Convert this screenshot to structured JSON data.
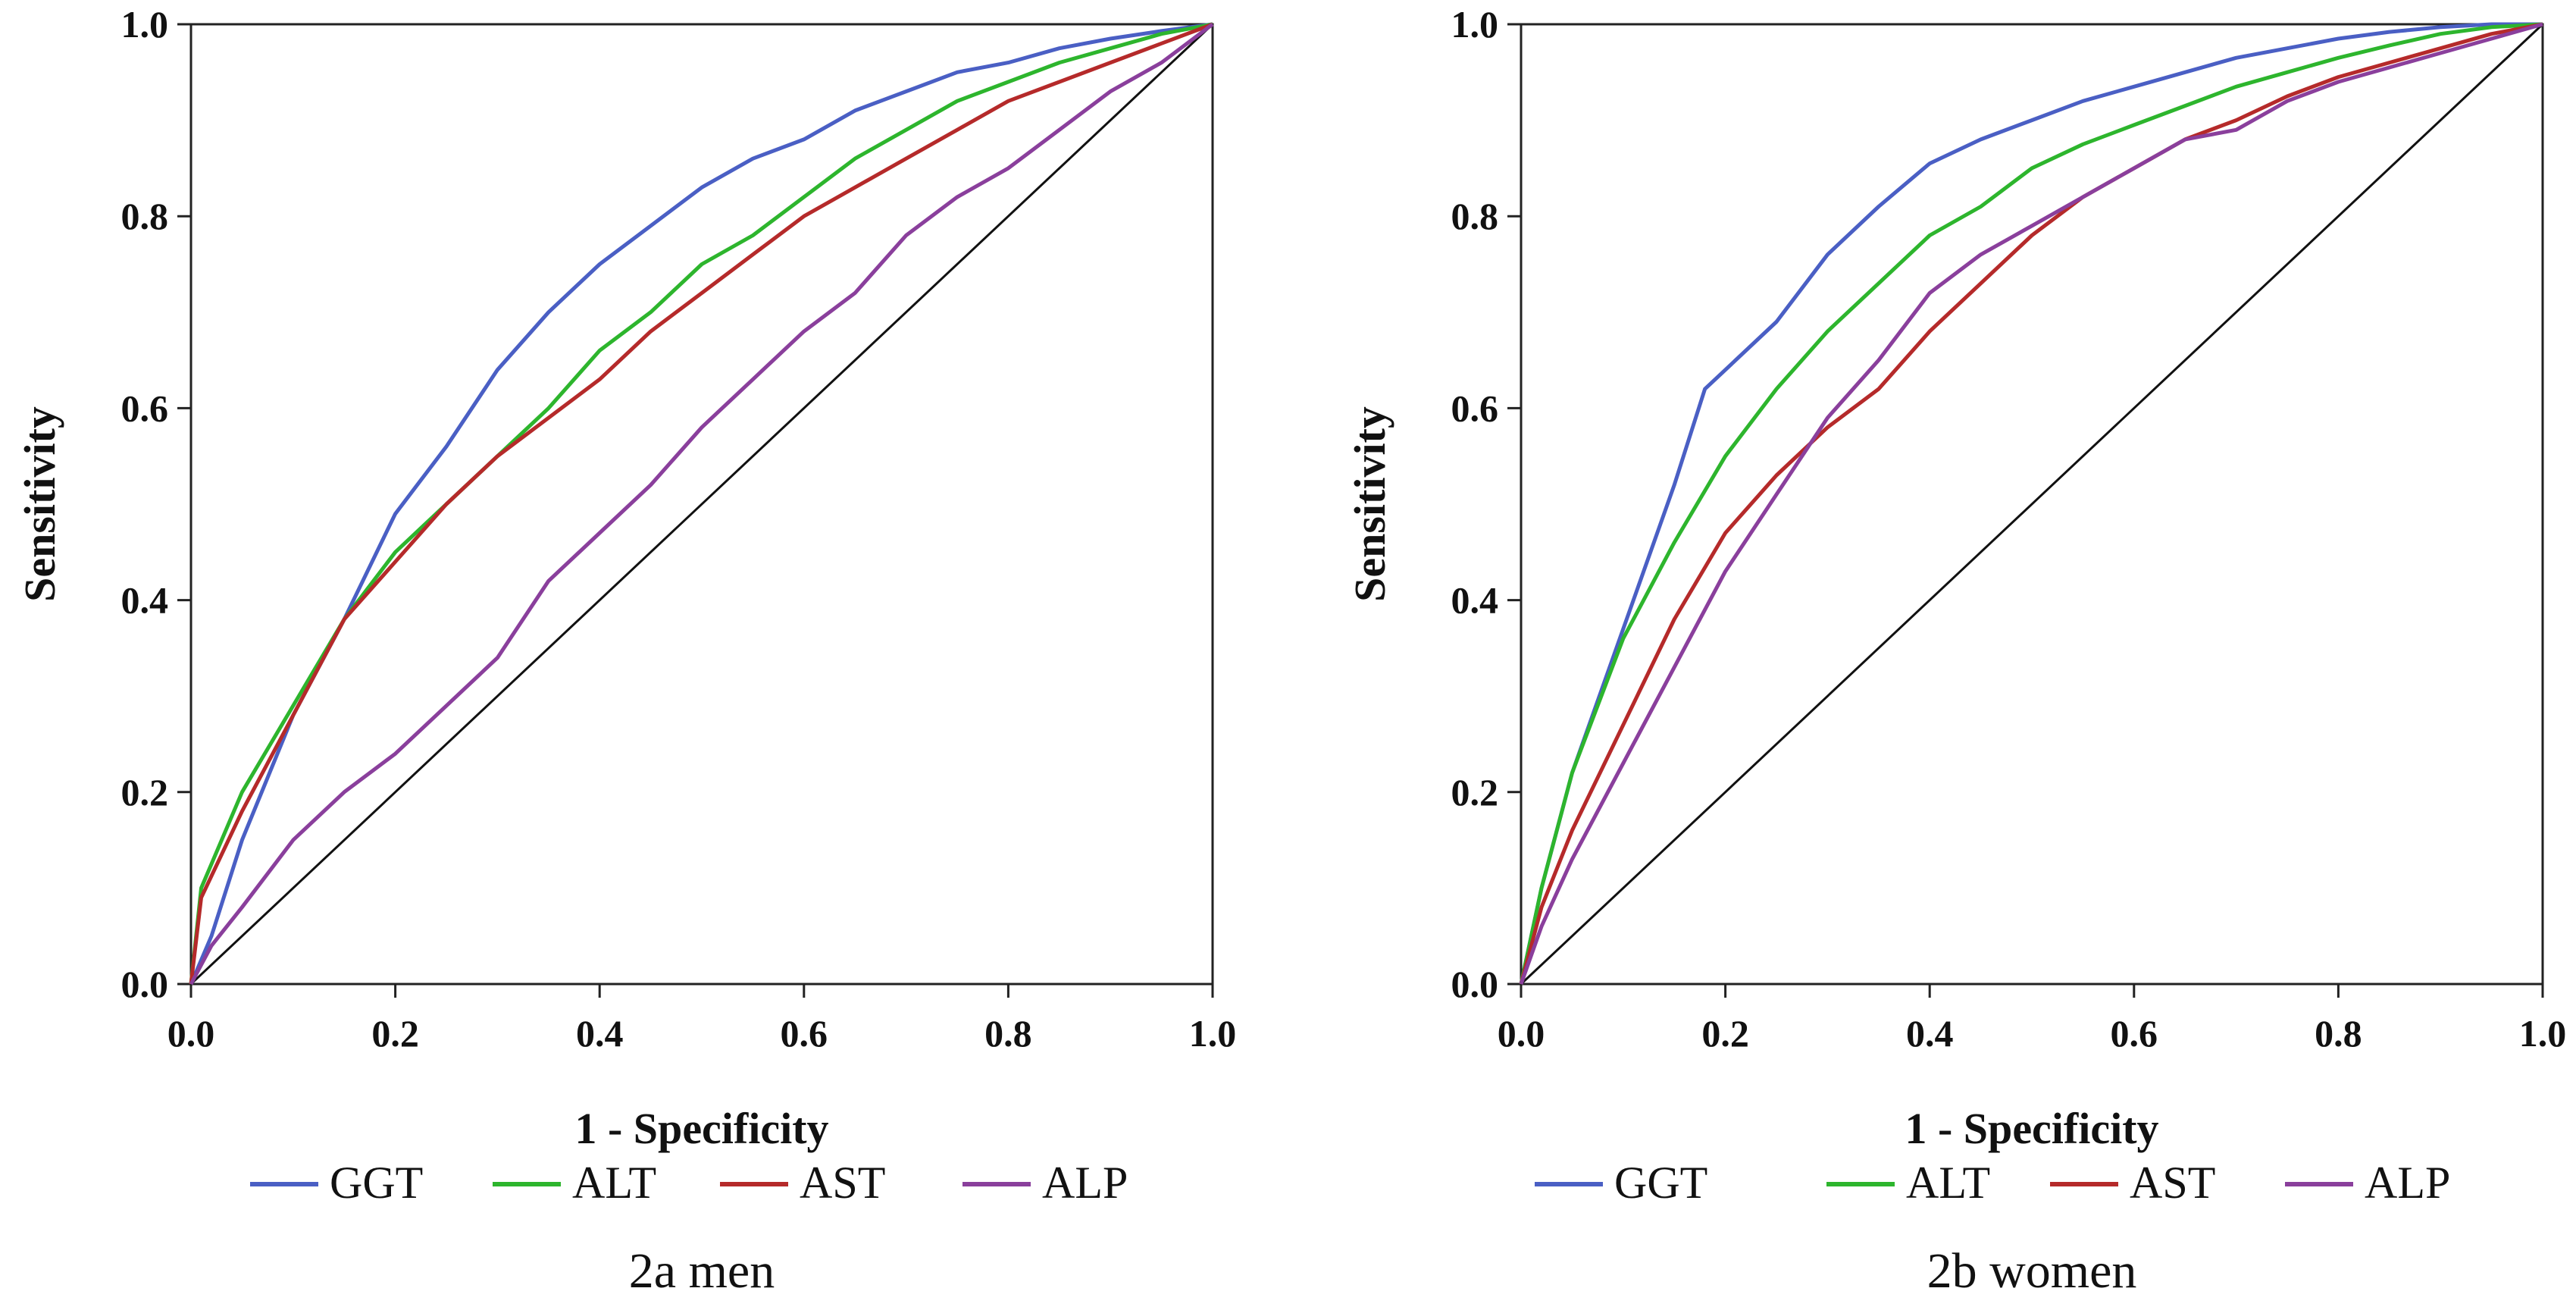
{
  "chart_data": [
    {
      "type": "line",
      "caption": "2a  men",
      "xlabel": "1 - Specificity",
      "ylabel": "Sensitivity",
      "xlim": [
        0,
        1
      ],
      "ylim": [
        0,
        1
      ],
      "xticks": [
        "0.0",
        "0.2",
        "0.4",
        "0.6",
        "0.8",
        "1.0"
      ],
      "yticks": [
        "0.0",
        "0.2",
        "0.4",
        "0.6",
        "0.8",
        "1.0"
      ],
      "grid": false,
      "legend": "bottom",
      "reference_line": [
        [
          0,
          0
        ],
        [
          1,
          1
        ]
      ],
      "series": [
        {
          "name": "GGT",
          "color": "#4a5fc4",
          "points": [
            [
              0,
              0
            ],
            [
              0.02,
              0.05
            ],
            [
              0.05,
              0.15
            ],
            [
              0.1,
              0.28
            ],
            [
              0.15,
              0.38
            ],
            [
              0.2,
              0.49
            ],
            [
              0.25,
              0.56
            ],
            [
              0.3,
              0.64
            ],
            [
              0.35,
              0.7
            ],
            [
              0.4,
              0.75
            ],
            [
              0.45,
              0.79
            ],
            [
              0.5,
              0.83
            ],
            [
              0.55,
              0.86
            ],
            [
              0.6,
              0.88
            ],
            [
              0.65,
              0.91
            ],
            [
              0.7,
              0.93
            ],
            [
              0.75,
              0.95
            ],
            [
              0.8,
              0.96
            ],
            [
              0.85,
              0.975
            ],
            [
              0.9,
              0.985
            ],
            [
              0.95,
              0.993
            ],
            [
              1,
              1
            ]
          ]
        },
        {
          "name": "ALT",
          "color": "#2db52d",
          "points": [
            [
              0,
              0
            ],
            [
              0.01,
              0.1
            ],
            [
              0.05,
              0.2
            ],
            [
              0.1,
              0.29
            ],
            [
              0.15,
              0.38
            ],
            [
              0.2,
              0.45
            ],
            [
              0.25,
              0.5
            ],
            [
              0.3,
              0.55
            ],
            [
              0.35,
              0.6
            ],
            [
              0.4,
              0.66
            ],
            [
              0.45,
              0.7
            ],
            [
              0.5,
              0.75
            ],
            [
              0.55,
              0.78
            ],
            [
              0.6,
              0.82
            ],
            [
              0.65,
              0.86
            ],
            [
              0.7,
              0.89
            ],
            [
              0.75,
              0.92
            ],
            [
              0.8,
              0.94
            ],
            [
              0.85,
              0.96
            ],
            [
              0.9,
              0.975
            ],
            [
              0.95,
              0.99
            ],
            [
              1,
              1
            ]
          ]
        },
        {
          "name": "AST",
          "color": "#b52a2a",
          "points": [
            [
              0,
              0
            ],
            [
              0.01,
              0.09
            ],
            [
              0.05,
              0.18
            ],
            [
              0.1,
              0.28
            ],
            [
              0.15,
              0.38
            ],
            [
              0.2,
              0.44
            ],
            [
              0.25,
              0.5
            ],
            [
              0.3,
              0.55
            ],
            [
              0.35,
              0.59
            ],
            [
              0.4,
              0.63
            ],
            [
              0.45,
              0.68
            ],
            [
              0.5,
              0.72
            ],
            [
              0.55,
              0.76
            ],
            [
              0.6,
              0.8
            ],
            [
              0.65,
              0.83
            ],
            [
              0.7,
              0.86
            ],
            [
              0.75,
              0.89
            ],
            [
              0.8,
              0.92
            ],
            [
              0.85,
              0.94
            ],
            [
              0.9,
              0.96
            ],
            [
              0.95,
              0.98
            ],
            [
              1,
              1
            ]
          ]
        },
        {
          "name": "ALP",
          "color": "#8a3f9c",
          "points": [
            [
              0,
              0
            ],
            [
              0.02,
              0.04
            ],
            [
              0.05,
              0.08
            ],
            [
              0.1,
              0.15
            ],
            [
              0.15,
              0.2
            ],
            [
              0.2,
              0.24
            ],
            [
              0.25,
              0.29
            ],
            [
              0.3,
              0.34
            ],
            [
              0.35,
              0.42
            ],
            [
              0.4,
              0.47
            ],
            [
              0.45,
              0.52
            ],
            [
              0.5,
              0.58
            ],
            [
              0.55,
              0.63
            ],
            [
              0.6,
              0.68
            ],
            [
              0.65,
              0.72
            ],
            [
              0.7,
              0.78
            ],
            [
              0.75,
              0.82
            ],
            [
              0.8,
              0.85
            ],
            [
              0.85,
              0.89
            ],
            [
              0.9,
              0.93
            ],
            [
              0.95,
              0.96
            ],
            [
              1,
              1
            ]
          ]
        }
      ]
    },
    {
      "type": "line",
      "caption": "2b  women",
      "xlabel": "1 - Specificity",
      "ylabel": "Sensitivity",
      "xlim": [
        0,
        1
      ],
      "ylim": [
        0,
        1
      ],
      "xticks": [
        "0.0",
        "0.2",
        "0.4",
        "0.6",
        "0.8",
        "1.0"
      ],
      "yticks": [
        "0.0",
        "0.2",
        "0.4",
        "0.6",
        "0.8",
        "1.0"
      ],
      "grid": false,
      "legend": "bottom",
      "reference_line": [
        [
          0,
          0
        ],
        [
          1,
          1
        ]
      ],
      "series": [
        {
          "name": "GGT",
          "color": "#4a5fc4",
          "points": [
            [
              0,
              0
            ],
            [
              0.02,
              0.1
            ],
            [
              0.05,
              0.22
            ],
            [
              0.1,
              0.37
            ],
            [
              0.15,
              0.52
            ],
            [
              0.18,
              0.62
            ],
            [
              0.2,
              0.64
            ],
            [
              0.25,
              0.69
            ],
            [
              0.3,
              0.76
            ],
            [
              0.35,
              0.81
            ],
            [
              0.4,
              0.855
            ],
            [
              0.45,
              0.88
            ],
            [
              0.5,
              0.9
            ],
            [
              0.55,
              0.92
            ],
            [
              0.6,
              0.935
            ],
            [
              0.65,
              0.95
            ],
            [
              0.7,
              0.965
            ],
            [
              0.75,
              0.975
            ],
            [
              0.8,
              0.985
            ],
            [
              0.85,
              0.992
            ],
            [
              0.9,
              0.997
            ],
            [
              0.95,
              1.0
            ],
            [
              1,
              1
            ]
          ]
        },
        {
          "name": "ALT",
          "color": "#2db52d",
          "points": [
            [
              0,
              0
            ],
            [
              0.02,
              0.1
            ],
            [
              0.05,
              0.22
            ],
            [
              0.1,
              0.36
            ],
            [
              0.15,
              0.46
            ],
            [
              0.2,
              0.55
            ],
            [
              0.25,
              0.62
            ],
            [
              0.3,
              0.68
            ],
            [
              0.35,
              0.73
            ],
            [
              0.4,
              0.78
            ],
            [
              0.45,
              0.81
            ],
            [
              0.5,
              0.85
            ],
            [
              0.55,
              0.875
            ],
            [
              0.6,
              0.895
            ],
            [
              0.65,
              0.915
            ],
            [
              0.7,
              0.935
            ],
            [
              0.75,
              0.95
            ],
            [
              0.8,
              0.965
            ],
            [
              0.85,
              0.978
            ],
            [
              0.9,
              0.99
            ],
            [
              0.95,
              0.997
            ],
            [
              1,
              1
            ]
          ]
        },
        {
          "name": "AST",
          "color": "#b52a2a",
          "points": [
            [
              0,
              0
            ],
            [
              0.02,
              0.08
            ],
            [
              0.05,
              0.16
            ],
            [
              0.1,
              0.27
            ],
            [
              0.15,
              0.38
            ],
            [
              0.2,
              0.47
            ],
            [
              0.25,
              0.53
            ],
            [
              0.3,
              0.58
            ],
            [
              0.35,
              0.62
            ],
            [
              0.4,
              0.68
            ],
            [
              0.45,
              0.73
            ],
            [
              0.5,
              0.78
            ],
            [
              0.55,
              0.82
            ],
            [
              0.6,
              0.85
            ],
            [
              0.65,
              0.88
            ],
            [
              0.7,
              0.9
            ],
            [
              0.75,
              0.925
            ],
            [
              0.8,
              0.945
            ],
            [
              0.85,
              0.96
            ],
            [
              0.9,
              0.975
            ],
            [
              0.95,
              0.99
            ],
            [
              1,
              1
            ]
          ]
        },
        {
          "name": "ALP",
          "color": "#8a3f9c",
          "points": [
            [
              0,
              0
            ],
            [
              0.02,
              0.06
            ],
            [
              0.05,
              0.13
            ],
            [
              0.1,
              0.23
            ],
            [
              0.15,
              0.33
            ],
            [
              0.2,
              0.43
            ],
            [
              0.25,
              0.51
            ],
            [
              0.3,
              0.59
            ],
            [
              0.35,
              0.65
            ],
            [
              0.4,
              0.72
            ],
            [
              0.45,
              0.76
            ],
            [
              0.5,
              0.79
            ],
            [
              0.55,
              0.82
            ],
            [
              0.6,
              0.85
            ],
            [
              0.65,
              0.88
            ],
            [
              0.7,
              0.89
            ],
            [
              0.75,
              0.92
            ],
            [
              0.8,
              0.94
            ],
            [
              0.85,
              0.955
            ],
            [
              0.9,
              0.97
            ],
            [
              0.95,
              0.985
            ],
            [
              1,
              1
            ]
          ]
        }
      ]
    }
  ]
}
